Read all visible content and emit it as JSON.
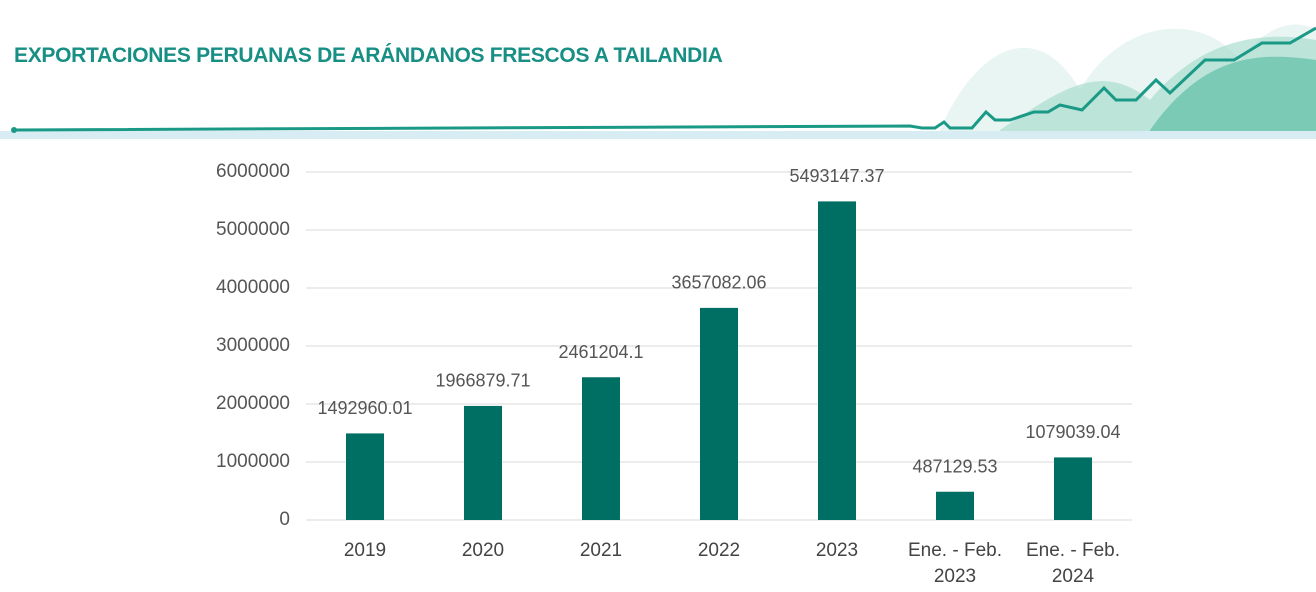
{
  "chart_data": {
    "type": "bar",
    "title": "EXPORTACIONES PERUANAS DE ARÁNDANOS FRESCOS A TAILANDIA",
    "categories": [
      "2019",
      "2020",
      "2021",
      "2022",
      "2023",
      "Ene. - Feb. 2023",
      "Ene. - Feb. 2024"
    ],
    "values": [
      1492960.01,
      1966879.71,
      2461204.1,
      3657082.06,
      5493147.37,
      487129.53,
      1079039.04
    ],
    "color": "#006f63",
    "ylim": [
      0,
      6000000
    ],
    "yticks": [
      0,
      1000000,
      2000000,
      3000000,
      4000000,
      5000000,
      6000000
    ],
    "grid": true
  }
}
